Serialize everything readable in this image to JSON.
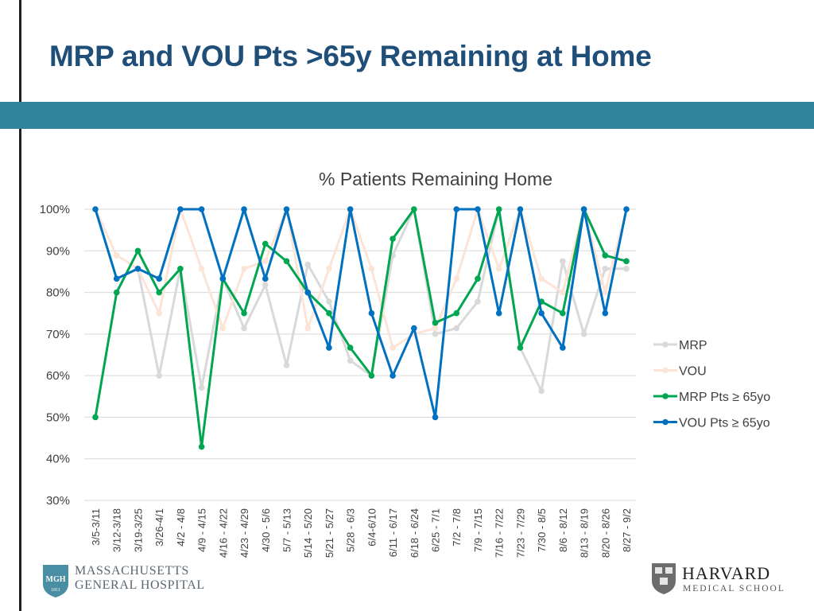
{
  "slide": {
    "title": "MRP and VOU Pts >65y Remaining at Home"
  },
  "colors": {
    "title": "#1f4e79",
    "band": "#31849b",
    "mrp": "#d9d9d9",
    "vou": "#fce4d6",
    "mrp_65": "#00a651",
    "vou_65": "#0070c0"
  },
  "logos": {
    "mgh": {
      "badge_text": "MGH",
      "badge_year": "1811",
      "line1": "MASSACHUSETTS",
      "line2": "GENERAL HOSPITAL"
    },
    "hms": {
      "name": "HARVARD",
      "sub": "MEDICAL SCHOOL"
    }
  },
  "chart_data": {
    "type": "line",
    "title": "% Patients Remaining Home",
    "xlabel": "",
    "ylabel": "",
    "ylim": [
      0.3,
      1.0
    ],
    "y_ticks": [
      "100%",
      "90%",
      "80%",
      "70%",
      "60%",
      "50%",
      "40%",
      "30%"
    ],
    "grid": true,
    "legend_position": "right",
    "categories": [
      "3/5-3/11",
      "3/12-3/18",
      "3/19-3/25",
      "3/26-4/1",
      "4/2 - 4/8",
      "4/9 - 4/15",
      "4/16 - 4/22",
      "4/23 - 4/29",
      "4/30 - 5/6",
      "5/7 - 5/13",
      "5/14 - 5/20",
      "5/21 - 5/27",
      "5/28 - 6/3",
      "6/4-6/10",
      "6/11 - 6/17",
      "6/18 - 6/24",
      "6/25 - 7/1",
      "7/2 - 7/8",
      "7/9 - 7/15",
      "7/16 - 7/22",
      "7/23 - 7/29",
      "7/30 - 8/5",
      "8/6 - 8/12",
      "8/13 - 8/19",
      "8/20 - 8/26",
      "8/27 - 9/2"
    ],
    "series": [
      {
        "name": "MRP",
        "color": "#d9d9d9",
        "values": [
          1.0,
          0.833,
          0.857,
          0.6,
          0.857,
          0.571,
          0.833,
          0.714,
          0.818,
          0.625,
          0.867,
          0.778,
          0.636,
          0.6,
          0.889,
          1.0,
          0.7,
          0.714,
          0.778,
          1.0,
          0.667,
          0.563,
          0.875,
          0.7,
          0.857,
          0.857
        ]
      },
      {
        "name": "VOU",
        "color": "#fce4d6",
        "values": [
          1.0,
          0.889,
          0.857,
          0.75,
          1.0,
          0.857,
          0.714,
          0.857,
          0.875,
          1.0,
          0.714,
          0.857,
          1.0,
          0.857,
          0.667,
          0.7,
          0.714,
          0.833,
          1.0,
          0.857,
          1.0,
          0.833,
          0.8,
          1.0,
          0.8,
          1.0
        ]
      },
      {
        "name": "MRP Pts ≥ 65yo",
        "color": "#00a651",
        "values": [
          0.5,
          0.8,
          0.9,
          0.8,
          0.857,
          0.429,
          0.833,
          0.75,
          0.917,
          0.875,
          0.8,
          0.75,
          0.667,
          0.6,
          0.929,
          1.0,
          0.727,
          0.75,
          0.833,
          1.0,
          0.667,
          0.778,
          0.75,
          1.0,
          0.889,
          0.875
        ]
      },
      {
        "name": "VOU Pts ≥ 65yo",
        "color": "#0070c0",
        "values": [
          1.0,
          0.833,
          0.857,
          0.833,
          1.0,
          1.0,
          0.833,
          1.0,
          0.833,
          1.0,
          0.8,
          0.667,
          1.0,
          0.75,
          0.6,
          0.714,
          0.5,
          1.0,
          1.0,
          0.75,
          1.0,
          0.75,
          0.667,
          1.0,
          0.75,
          1.0
        ]
      }
    ]
  }
}
